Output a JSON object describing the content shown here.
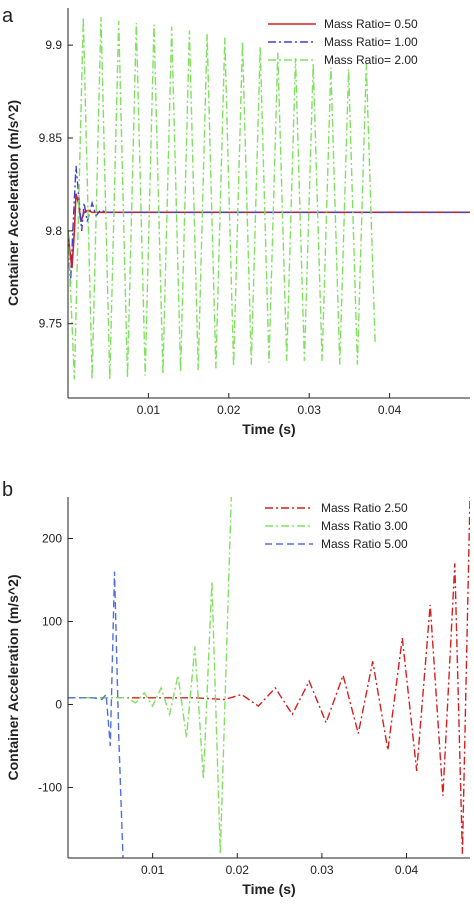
{
  "chart_data": [
    {
      "panel_label": "a",
      "type": "line",
      "xlabel": "Time (s)",
      "ylabel": "Container Acceleration (m/s^2)",
      "xlim": [
        0,
        0.05
      ],
      "ylim": [
        9.71,
        9.92
      ],
      "xticks": [
        "0.01",
        "0.02",
        "0.03",
        "0.04"
      ],
      "xtick_values": [
        0.01,
        0.02,
        0.03,
        0.04
      ],
      "yticks": [
        "9.75",
        "9.8",
        "9.85",
        "9.9"
      ],
      "ytick_values": [
        9.75,
        9.8,
        9.85,
        9.9
      ],
      "legend_position": "top-right",
      "series": [
        {
          "name": "Mass Ratio= 0.50",
          "color": "#d62020",
          "dash": "solid",
          "x": [
            0,
            0.0002,
            0.0005,
            0.0008,
            0.001,
            0.0013,
            0.0016,
            0.002,
            0.0025,
            0.003,
            0.004,
            0.005,
            0.05
          ],
          "y": [
            9.8,
            9.79,
            9.78,
            9.8,
            9.82,
            9.815,
            9.805,
            9.81,
            9.811,
            9.81,
            9.81,
            9.81,
            9.81
          ]
        },
        {
          "name": "Mass Ratio= 1.00",
          "color": "#4040d0",
          "dash": "dashdot",
          "x": [
            0,
            0.0003,
            0.0006,
            0.001,
            0.0013,
            0.0017,
            0.002,
            0.0024,
            0.003,
            0.0035,
            0.004,
            0.005,
            0.05
          ],
          "y": [
            9.8,
            9.77,
            9.8,
            9.835,
            9.82,
            9.8,
            9.815,
            9.805,
            9.815,
            9.808,
            9.811,
            9.81,
            9.81
          ]
        },
        {
          "name": "Mass Ratio= 2.00",
          "color": "#80e060",
          "dash": "dashdot",
          "x": [
            0,
            0.0008,
            0.0019,
            0.003,
            0.0041,
            0.0052,
            0.0063,
            0.0074,
            0.0085,
            0.0096,
            0.0107,
            0.0118,
            0.0129,
            0.014,
            0.0151,
            0.0162,
            0.0173,
            0.0184,
            0.0195,
            0.0206,
            0.0217,
            0.0228,
            0.0239,
            0.025,
            0.0261,
            0.0272,
            0.0283,
            0.0294,
            0.0305,
            0.0316,
            0.0327,
            0.0338,
            0.0349,
            0.036,
            0.0371,
            0.0382
          ],
          "y": [
            9.8,
            9.72,
            9.915,
            9.72,
            9.915,
            9.72,
            9.913,
            9.721,
            9.912,
            9.722,
            9.911,
            9.723,
            9.91,
            9.724,
            9.908,
            9.725,
            9.906,
            9.726,
            9.904,
            9.727,
            9.902,
            9.728,
            9.899,
            9.729,
            9.896,
            9.73,
            9.893,
            9.73,
            9.89,
            9.73,
            9.888,
            9.728,
            9.887,
            9.728,
            9.89,
            9.74
          ]
        }
      ]
    },
    {
      "panel_label": "b",
      "type": "line",
      "xlabel": "Time (s)",
      "ylabel": "Container Acceleration (m/s^2)",
      "xlim": [
        0,
        0.0475
      ],
      "ylim": [
        -185,
        250
      ],
      "xticks": [
        "0.01",
        "0.02",
        "0.03",
        "0.04"
      ],
      "xtick_values": [
        0.01,
        0.02,
        0.03,
        0.04
      ],
      "yticks": [
        "-100",
        "0",
        "100",
        "200"
      ],
      "ytick_values": [
        -100,
        0,
        100,
        200
      ],
      "legend_position": "top-right",
      "series": [
        {
          "name": "Mass Ratio 2.50",
          "color": "#d62020",
          "dash": "dashdot",
          "x": [
            0,
            0.01,
            0.015,
            0.0185,
            0.0205,
            0.0225,
            0.0245,
            0.0265,
            0.0285,
            0.0305,
            0.0325,
            0.0343,
            0.036,
            0.0378,
            0.0395,
            0.0412,
            0.0428,
            0.0443,
            0.0457,
            0.0466,
            0.0475
          ],
          "y": [
            8,
            8,
            8,
            6,
            12,
            -2,
            20,
            -12,
            28,
            -22,
            35,
            -35,
            52,
            -55,
            80,
            -80,
            120,
            -110,
            170,
            -180,
            250
          ]
        },
        {
          "name": "Mass Ratio 3.00",
          "color": "#80e060",
          "dash": "dashdot",
          "x": [
            0,
            0.004,
            0.007,
            0.008,
            0.009,
            0.01,
            0.011,
            0.012,
            0.013,
            0.014,
            0.015,
            0.016,
            0.017,
            0.018,
            0.0193
          ],
          "y": [
            8,
            8,
            8,
            2,
            14,
            -2,
            20,
            -12,
            35,
            -40,
            70,
            -90,
            148,
            -180,
            250
          ]
        },
        {
          "name": "Mass Ratio 5.00",
          "color": "#5070e0",
          "dash": "dashed",
          "x": [
            0,
            0.002,
            0.003,
            0.004,
            0.0045,
            0.005,
            0.0055,
            0.006,
            0.0065
          ],
          "y": [
            8,
            8,
            8,
            6,
            12,
            -50,
            160,
            -40,
            -185
          ]
        }
      ]
    }
  ]
}
